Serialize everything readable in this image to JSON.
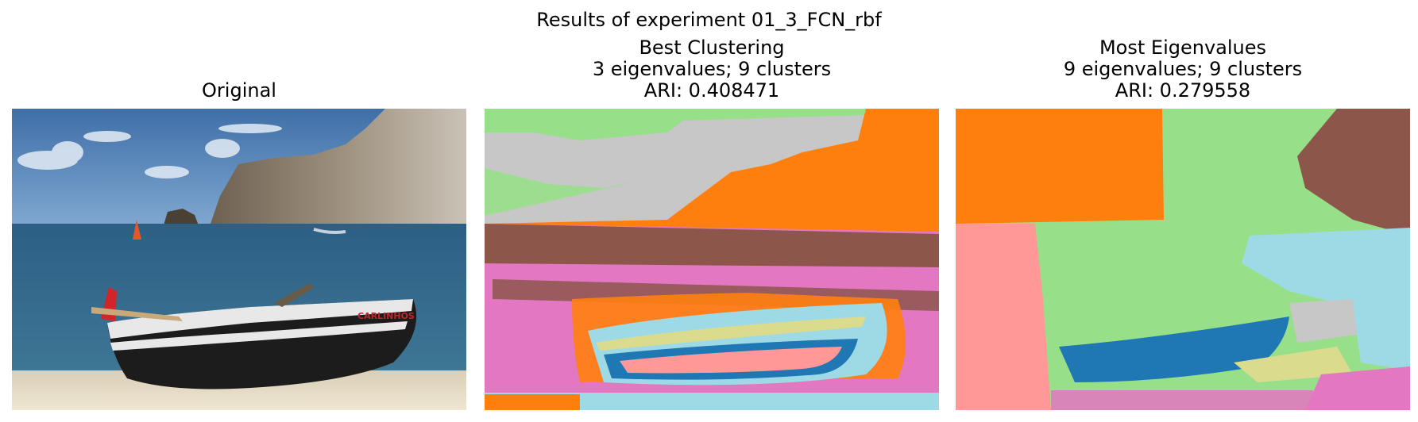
{
  "figure": {
    "suptitle": "Results of experiment 01_3_FCN_rbf"
  },
  "panels": [
    {
      "title_lines": [
        "Original"
      ],
      "image": "photo of a black-and-white fishing boat on a sandy beach with sea and rocky cliffs",
      "boat_label": "CARLINHOS"
    },
    {
      "title_lines": [
        "Best Clustering",
        "3 eigenvalues; 9 clusters",
        "ARI: 0.408471"
      ],
      "image": "segmentation map with 9 cluster colors"
    },
    {
      "title_lines": [
        "Most Eigenvalues",
        "9 eigenvalues; 9 clusters",
        "ARI: 0.279558"
      ],
      "image": "segmentation map with 9 cluster colors"
    }
  ],
  "cluster_colors": {
    "orange": "#ff7f0e",
    "green": "#98df8a",
    "gray": "#c7c7c7",
    "brown": "#8c564b",
    "pink": "#e377c2",
    "light_blue": "#9edae5",
    "blue": "#1f77b4",
    "salmon": "#ff9896",
    "khaki": "#dbdb8d"
  }
}
